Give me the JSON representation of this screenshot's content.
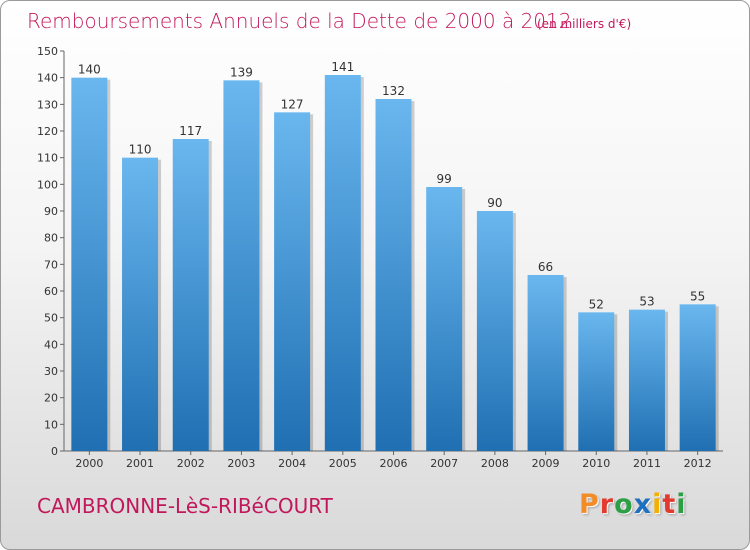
{
  "header": {
    "title": "Remboursements Annuels de la Dette de 2000 à 2012",
    "unit": "(en milliers d'€)"
  },
  "footer": {
    "commune": "CAMBRONNE-LèS-RIBéCOURT",
    "logo_letters": [
      "P",
      "r",
      "o",
      "x",
      "i",
      "t",
      "i"
    ],
    "logo_colors": [
      "#f28c28",
      "#e23a2e",
      "#2c9f45",
      "#1f6fc1",
      "#f4b000",
      "#e23a2e",
      "#2c9f45"
    ]
  },
  "colors": {
    "bar_top": "#6ab7ef",
    "bar_bottom": "#1f6fb2",
    "title": "#c2185b"
  },
  "chart_data": {
    "type": "bar",
    "title": "Remboursements Annuels de la Dette de 2000 à 2012",
    "xlabel": "",
    "ylabel": "",
    "categories": [
      "2000",
      "2001",
      "2002",
      "2003",
      "2004",
      "2005",
      "2006",
      "2007",
      "2008",
      "2009",
      "2010",
      "2011",
      "2012"
    ],
    "values": [
      140,
      110,
      117,
      139,
      127,
      141,
      132,
      99,
      90,
      66,
      52,
      53,
      55
    ],
    "ylim": [
      0,
      150
    ],
    "yticks": [
      0,
      10,
      20,
      30,
      40,
      50,
      60,
      70,
      80,
      90,
      100,
      110,
      120,
      130,
      140,
      150
    ],
    "grid": false,
    "data_labels": true
  }
}
